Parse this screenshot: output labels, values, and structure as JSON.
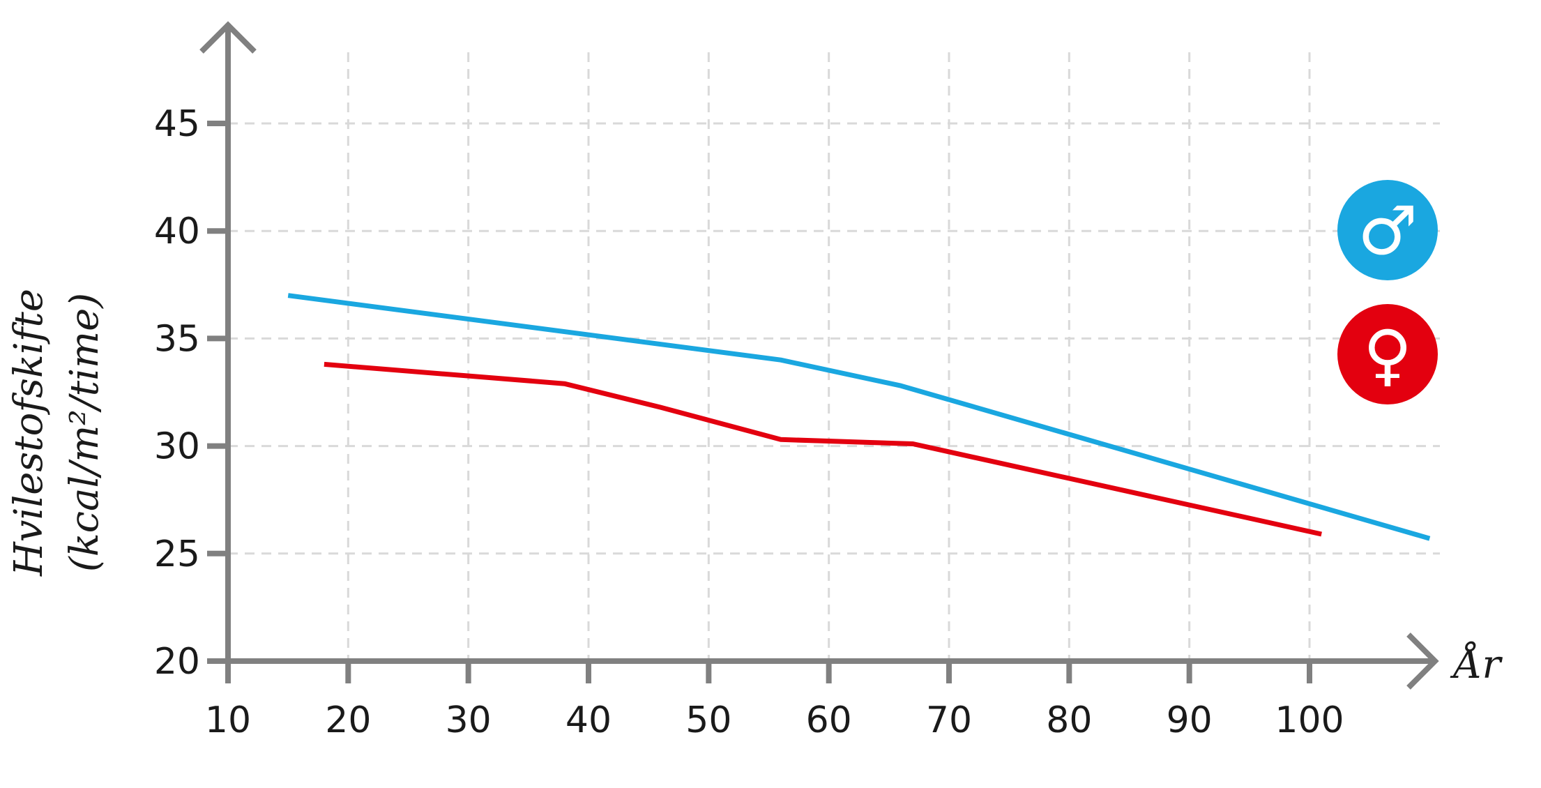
{
  "chart_data": {
    "type": "line",
    "xlabel": "År",
    "ylabel_line1": "Hvilestofskifte",
    "ylabel_line2": "(kcal/m²/time)",
    "xlim": [
      10,
      110
    ],
    "ylim": [
      20,
      50
    ],
    "xticks": [
      10,
      20,
      30,
      40,
      50,
      60,
      70,
      80,
      90,
      100
    ],
    "yticks": [
      20,
      25,
      30,
      35,
      40,
      45
    ],
    "grid": true,
    "legend_position": "right",
    "series": [
      {
        "name": "♂",
        "color": "#1aa7e0",
        "x": [
          15,
          56,
          66,
          110
        ],
        "y": [
          37.0,
          34.0,
          32.8,
          25.7
        ]
      },
      {
        "name": "♀",
        "color": "#e3000f",
        "x": [
          18,
          38,
          46,
          56,
          67,
          101
        ],
        "y": [
          33.8,
          32.9,
          31.8,
          30.3,
          30.1,
          25.9
        ]
      }
    ]
  }
}
